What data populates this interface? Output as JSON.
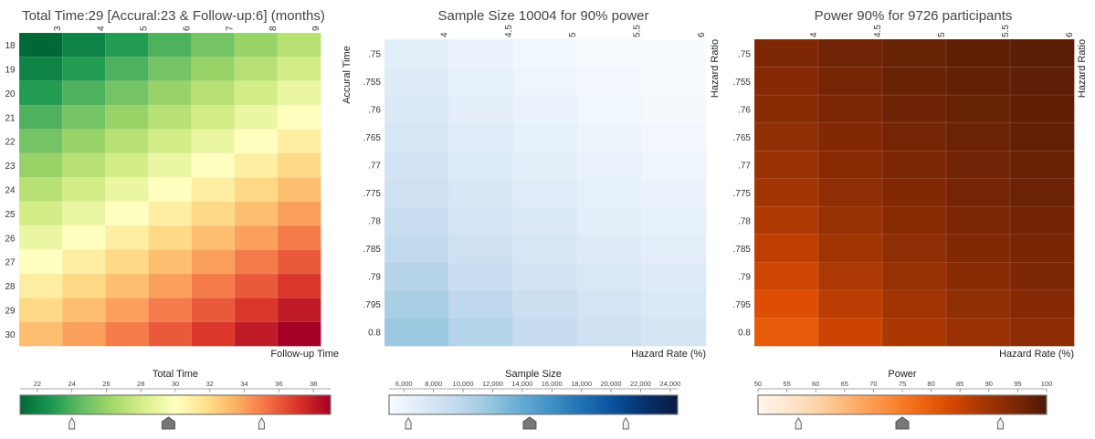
{
  "chart_data": [
    {
      "type": "heatmap",
      "title": "Total Time:29 [Accural:23 & Follow-up:6] (months)",
      "xlabel": "Follow-up Time",
      "ylabel": "Accural Time",
      "x": [
        "3",
        "4",
        "5",
        "6",
        "7",
        "8",
        "9"
      ],
      "y": [
        "18",
        "19",
        "20",
        "21",
        "22",
        "23",
        "24",
        "25",
        "26",
        "27",
        "28",
        "29",
        "30"
      ],
      "values_rule": "total time = accural + follow-up",
      "values": [
        [
          21,
          22,
          23,
          24,
          25,
          26,
          27
        ],
        [
          22,
          23,
          24,
          25,
          26,
          27,
          28
        ],
        [
          23,
          24,
          25,
          26,
          27,
          28,
          29
        ],
        [
          24,
          25,
          26,
          27,
          28,
          29,
          30
        ],
        [
          25,
          26,
          27,
          28,
          29,
          30,
          31
        ],
        [
          26,
          27,
          28,
          29,
          30,
          31,
          32
        ],
        [
          27,
          28,
          29,
          30,
          31,
          32,
          33
        ],
        [
          28,
          29,
          30,
          31,
          32,
          33,
          34
        ],
        [
          29,
          30,
          31,
          32,
          33,
          34,
          35
        ],
        [
          30,
          31,
          32,
          33,
          34,
          35,
          36
        ],
        [
          31,
          32,
          33,
          34,
          35,
          36,
          37
        ],
        [
          32,
          33,
          34,
          35,
          36,
          37,
          38
        ],
        [
          33,
          34,
          35,
          36,
          37,
          38,
          39
        ]
      ],
      "colorbar": {
        "label": "Total Time",
        "ticks": [
          "22",
          "24",
          "26",
          "28",
          "30",
          "32",
          "34",
          "36",
          "38"
        ],
        "range": [
          21,
          39
        ],
        "scheme": "green-yellow-red",
        "colors": [
          "#006837",
          "#1a9850",
          "#66bd63",
          "#a6d96a",
          "#d9ef8b",
          "#ffffbf",
          "#fee08b",
          "#fdae61",
          "#f46d43",
          "#d73027",
          "#a50026"
        ],
        "markers": [
          24,
          29.6,
          35
        ]
      }
    },
    {
      "type": "heatmap",
      "title": "Sample Size 10004 for 90% power",
      "xlabel": "Hazard Rate (%)",
      "ylabel": "Hazard Ratio",
      "x": [
        "4",
        "4.5",
        "5",
        "5.5",
        "6"
      ],
      "y": [
        ".75",
        ".755",
        ".76",
        ".765",
        ".77",
        ".775",
        ".78",
        ".785",
        ".79",
        ".795",
        "0.8"
      ],
      "values": [
        [
          6800,
          6100,
          5600,
          5200,
          4900
        ],
        [
          7100,
          6400,
          5800,
          5400,
          5100
        ],
        [
          7400,
          6700,
          6100,
          5600,
          5300
        ],
        [
          7800,
          7000,
          6400,
          5900,
          5500
        ],
        [
          8200,
          7300,
          6700,
          6200,
          5800
        ],
        [
          8600,
          7700,
          7000,
          6500,
          6100
        ],
        [
          9100,
          8100,
          7400,
          6800,
          6400
        ],
        [
          9600,
          8600,
          7800,
          7200,
          6700
        ],
        [
          10200,
          9100,
          8200,
          7600,
          7100
        ],
        [
          10900,
          9700,
          8800,
          8100,
          7500
        ],
        [
          11600,
          10300,
          9300,
          8600,
          8000
        ]
      ],
      "colorbar": {
        "label": "Sample Size",
        "ticks": [
          "6,000",
          "8,000",
          "10,000",
          "12,000",
          "14,000",
          "16,000",
          "18,000",
          "20,000",
          "22,000",
          "24,000"
        ],
        "range": [
          5000,
          24500
        ],
        "scheme": "blues",
        "colors": [
          "#f7fbff",
          "#deebf7",
          "#c6dbef",
          "#9ecae1",
          "#6baed6",
          "#4292c6",
          "#2171b5",
          "#08519c",
          "#08306b",
          "#0b1a44"
        ],
        "markers": [
          6300,
          14500,
          21000
        ]
      }
    },
    {
      "type": "heatmap",
      "title": "Power 90% for 9726 participants",
      "xlabel": "Hazard Rate (%)",
      "ylabel": "Hazard Ratio",
      "x": [
        "4",
        "4.5",
        "5",
        "5.5",
        "6"
      ],
      "y": [
        ".75",
        ".755",
        ".76",
        ".765",
        ".77",
        ".775",
        ".78",
        ".785",
        ".79",
        ".795",
        "0.8"
      ],
      "values": [
        [
          94.5,
          96.0,
          97.0,
          97.8,
          98.3
        ],
        [
          93.8,
          95.4,
          96.6,
          97.4,
          98.0
        ],
        [
          93.0,
          94.8,
          96.1,
          97.0,
          97.7
        ],
        [
          92.0,
          94.0,
          95.5,
          96.5,
          97.3
        ],
        [
          90.8,
          93.2,
          94.8,
          96.0,
          96.9
        ],
        [
          89.5,
          92.2,
          94.0,
          95.4,
          96.4
        ],
        [
          88.0,
          91.0,
          93.2,
          94.7,
          95.8
        ],
        [
          86.3,
          89.7,
          92.2,
          93.9,
          95.2
        ],
        [
          84.5,
          88.2,
          91.0,
          93.0,
          94.5
        ],
        [
          82.5,
          86.6,
          89.7,
          92.0,
          93.6
        ],
        [
          80.3,
          84.8,
          88.3,
          90.8,
          92.7
        ]
      ],
      "colorbar": {
        "label": "Power",
        "ticks": [
          "50",
          "55",
          "60",
          "65",
          "70",
          "75",
          "80",
          "85",
          "90",
          "95",
          "100"
        ],
        "range": [
          50,
          100
        ],
        "scheme": "oranges",
        "colors": [
          "#fff5eb",
          "#fee6ce",
          "#fdd0a2",
          "#fdae6b",
          "#fd8d3c",
          "#f16913",
          "#d94801",
          "#a63603",
          "#7f2704",
          "#4a1a06"
        ],
        "markers": [
          57,
          75,
          92
        ]
      }
    }
  ]
}
